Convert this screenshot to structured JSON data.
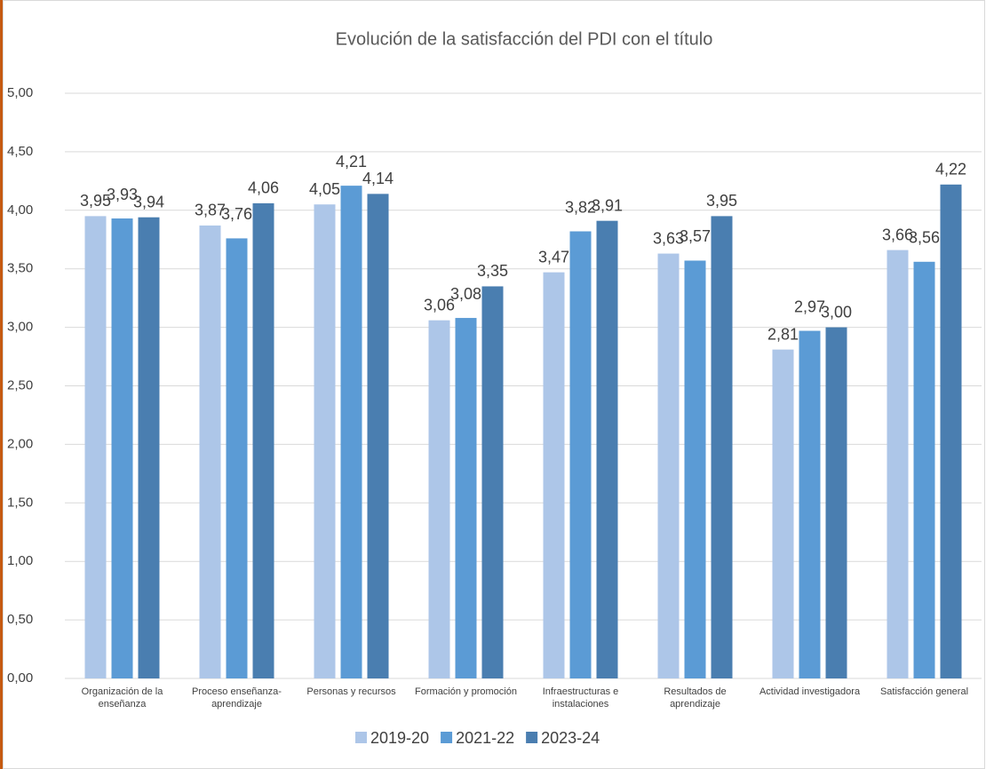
{
  "chart_data": {
    "type": "bar",
    "title": "Evolución de la satisfacción del PDI con el título",
    "categories": [
      "Organización de la enseñanza",
      "Proceso enseñanza-aprendizaje",
      "Personas y recursos",
      "Formación y promoción",
      "Infraestructuras e instalaciones",
      "Resultados de aprendizaje",
      "Actividad investigadora",
      "Satisfacción general"
    ],
    "series": [
      {
        "name": "2019-20",
        "color": "#adc6e8",
        "values": [
          3.95,
          3.87,
          4.05,
          3.06,
          3.47,
          3.63,
          2.81,
          3.66
        ],
        "value_labels": [
          "3,95",
          "3,87",
          "4,05",
          "3,06",
          "3,47",
          "3,63",
          "2,81",
          "3,66"
        ]
      },
      {
        "name": "2021-22",
        "color": "#5b9bd5",
        "values": [
          3.93,
          3.76,
          4.21,
          3.08,
          3.82,
          3.57,
          2.97,
          3.56
        ],
        "value_labels": [
          "3,93",
          "3,76",
          "4,21",
          "3,08",
          "3,82",
          "3,57",
          "2,97",
          "3,56"
        ]
      },
      {
        "name": "2023-24",
        "color": "#4a7eb0",
        "values": [
          3.94,
          4.06,
          4.14,
          3.35,
          3.91,
          3.95,
          3.0,
          4.22
        ],
        "value_labels": [
          "3,94",
          "4,06",
          "4,14",
          "3,35",
          "3,91",
          "3,95",
          "3,00",
          "4,22"
        ]
      }
    ],
    "ylim": [
      0,
      5
    ],
    "yticks": [
      {
        "value": 0,
        "label": "0,00"
      },
      {
        "value": 0.5,
        "label": "0,50"
      },
      {
        "value": 1,
        "label": "1,00"
      },
      {
        "value": 1.5,
        "label": "1,50"
      },
      {
        "value": 2,
        "label": "2,00"
      },
      {
        "value": 2.5,
        "label": "2,50"
      },
      {
        "value": 3,
        "label": "3,00"
      },
      {
        "value": 3.5,
        "label": "3,50"
      },
      {
        "value": 4,
        "label": "4,00"
      },
      {
        "value": 4.5,
        "label": "4,50"
      },
      {
        "value": 5,
        "label": "5,00"
      }
    ],
    "grid": true,
    "legend": "bottom"
  }
}
